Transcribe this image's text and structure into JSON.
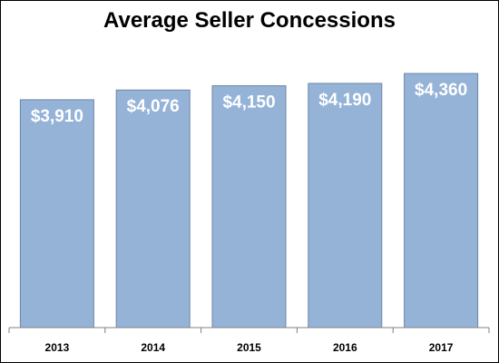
{
  "chart_data": {
    "type": "bar",
    "title": "Average Seller Concessions",
    "xlabel": "",
    "ylabel": "",
    "categories": [
      "2013",
      "2014",
      "2015",
      "2016",
      "2017"
    ],
    "values": [
      3910,
      4076,
      4150,
      4190,
      4360
    ],
    "data_labels": [
      "$3,910",
      "$4,076",
      "$4,150",
      "$4,190",
      "$4,360"
    ],
    "ylim": [
      0,
      4500
    ],
    "grid": false,
    "legend": "none",
    "colors": {
      "bar_fill": "#95b3d7",
      "bar_stroke": "#6e86a3",
      "label_text": "#ffffff",
      "axis": "#808080"
    }
  }
}
